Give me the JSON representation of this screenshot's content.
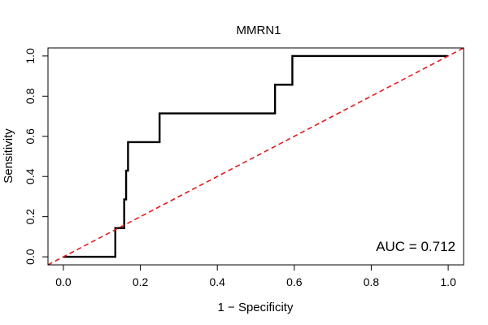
{
  "chart_data": {
    "type": "line",
    "title": "MMRN1",
    "xlabel": "1 − Specificity",
    "ylabel": "Sensitivity",
    "xlim": [
      -0.04,
      1.04
    ],
    "ylim": [
      -0.04,
      1.04
    ],
    "x_ticks": [
      0.0,
      0.2,
      0.4,
      0.6,
      0.8,
      1.0
    ],
    "x_tick_labels": [
      "0.0",
      "0.2",
      "0.4",
      "0.6",
      "0.8",
      "1.0"
    ],
    "y_ticks": [
      0.0,
      0.2,
      0.4,
      0.6,
      0.8,
      1.0
    ],
    "y_tick_labels": [
      "0.0",
      "0.2",
      "0.4",
      "0.6",
      "0.8",
      "1.0"
    ],
    "series": [
      {
        "name": "ROC curve",
        "color": "#000000",
        "x": [
          0.0,
          0.135,
          0.135,
          0.158,
          0.158,
          0.163,
          0.163,
          0.168,
          0.168,
          0.25,
          0.25,
          0.55,
          0.55,
          0.595,
          0.595,
          1.0
        ],
        "y": [
          0.0,
          0.0,
          0.143,
          0.143,
          0.286,
          0.286,
          0.429,
          0.429,
          0.571,
          0.571,
          0.714,
          0.714,
          0.857,
          0.857,
          1.0,
          1.0
        ]
      },
      {
        "name": "Reference line",
        "color": "#e31a1c",
        "style": "dashed",
        "x": [
          -0.04,
          1.04
        ],
        "y": [
          -0.04,
          1.04
        ]
      }
    ],
    "annotation": "AUC = 0.712"
  }
}
